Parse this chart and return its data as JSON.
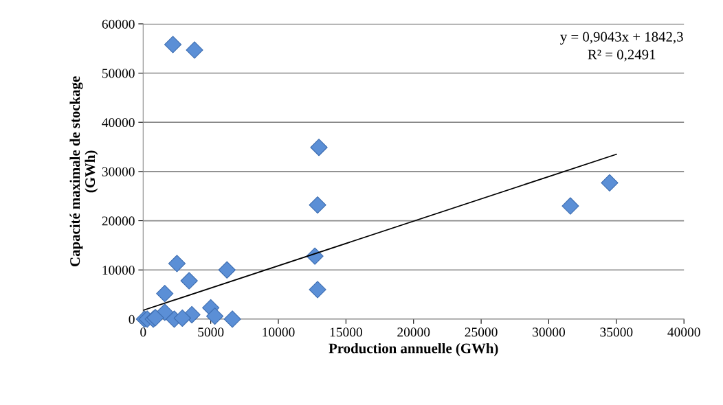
{
  "chart_data": {
    "type": "scatter",
    "xlabel": "Production annuelle (GWh)",
    "ylabel": "Capacité maximale de stockage\n(GWh)",
    "xlim": [
      0,
      40000
    ],
    "xticks": [
      0,
      5000,
      10000,
      15000,
      20000,
      25000,
      30000,
      35000,
      40000
    ],
    "ylim": [
      0,
      60000
    ],
    "yticks": [
      0,
      10000,
      20000,
      30000,
      40000,
      50000,
      60000
    ],
    "grid": "y",
    "legend": false,
    "marker": "diamond",
    "series": [
      {
        "color": "#5b8fd6",
        "x": [
          2200,
          3800,
          13000,
          12900,
          12700,
          12900,
          34500,
          31600,
          2500,
          6200,
          3400,
          1600,
          5000,
          3600,
          2300,
          1600,
          5300,
          6600,
          2900,
          100,
          300,
          750,
          900
        ],
        "values": [
          55800,
          54700,
          34900,
          23200,
          12800,
          6000,
          27700,
          23000,
          11300,
          10000,
          7800,
          5200,
          2300,
          900,
          0,
          1400,
          600,
          0,
          200,
          0,
          0,
          0,
          300
        ]
      },
      {
        "type": "line",
        "color": "#000000",
        "x": [
          0,
          35000
        ],
        "values": [
          1800,
          33500
        ],
        "marker": "none"
      }
    ],
    "annotations": [
      "y = 0,9043x + 1842,3",
      "R² = 0,2491"
    ]
  }
}
